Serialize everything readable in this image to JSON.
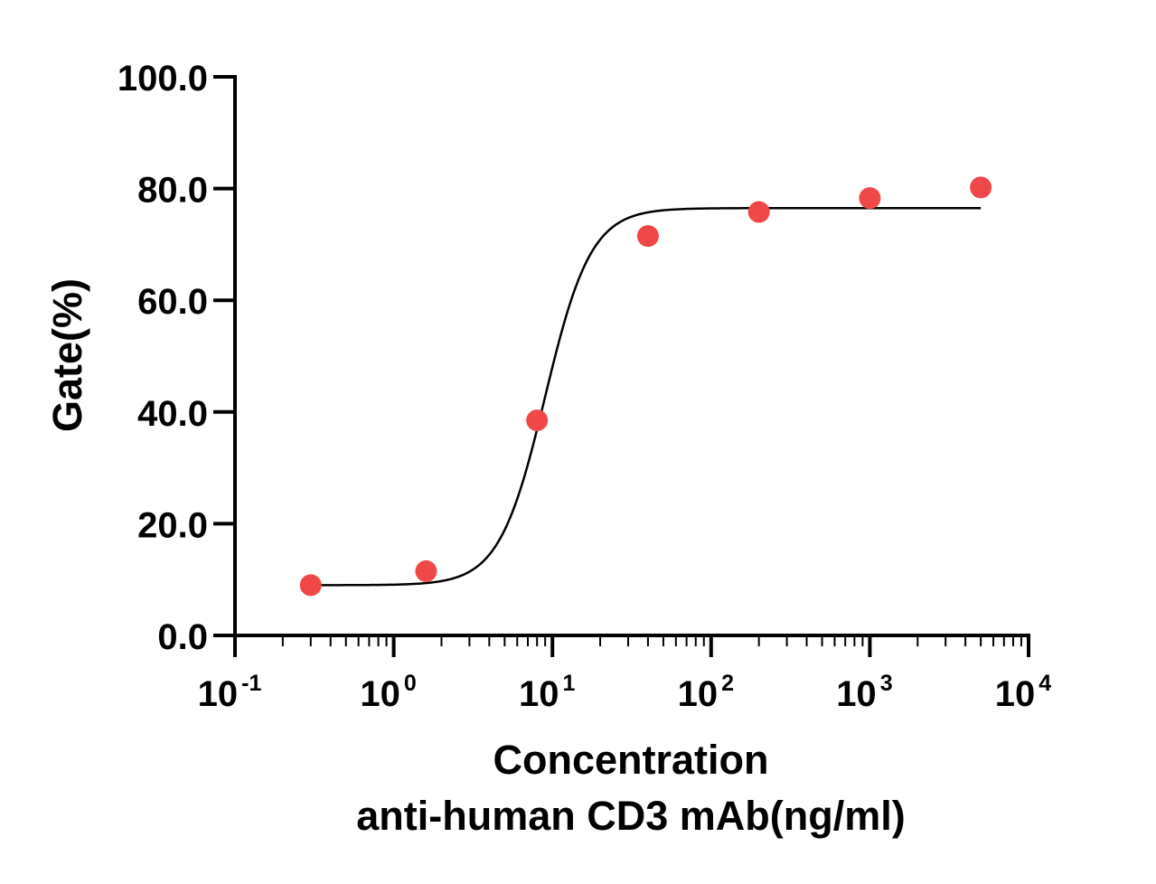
{
  "chart_data": {
    "type": "scatter",
    "title": "",
    "xlabel": "Concentration",
    "xlabel_line2": "anti-human CD3 mAb(ng/ml)",
    "ylabel": "Gate(%)",
    "x_scale": "log",
    "xlim": [
      0.1,
      10000
    ],
    "ylim": [
      0,
      100
    ],
    "x_ticks": [
      {
        "value": 0.1,
        "base": "10",
        "exp": "-1"
      },
      {
        "value": 1,
        "base": "10",
        "exp": "0"
      },
      {
        "value": 10,
        "base": "10",
        "exp": "1"
      },
      {
        "value": 100,
        "base": "10",
        "exp": "2"
      },
      {
        "value": 1000,
        "base": "10",
        "exp": "3"
      },
      {
        "value": 10000,
        "base": "10",
        "exp": "4"
      }
    ],
    "y_ticks": [
      {
        "value": 0,
        "label": "0.0"
      },
      {
        "value": 20,
        "label": "20.0"
      },
      {
        "value": 40,
        "label": "40.0"
      },
      {
        "value": 60,
        "label": "60.0"
      },
      {
        "value": 80,
        "label": "80.0"
      },
      {
        "value": 100,
        "label": "100.0"
      }
    ],
    "grid": false,
    "points": {
      "color": "#f04848",
      "x": [
        0.3,
        1.6,
        8,
        40,
        200,
        1000,
        5000
      ],
      "y": [
        9.0,
        11.5,
        38.5,
        71.5,
        75.8,
        78.3,
        80.2
      ]
    },
    "fit_curve": {
      "color": "#000000",
      "model": "4PL",
      "bottom": 9.0,
      "top": 76.5,
      "ec50": 9.0,
      "hill": 3.0,
      "x_range": [
        0.3,
        5000
      ]
    }
  }
}
